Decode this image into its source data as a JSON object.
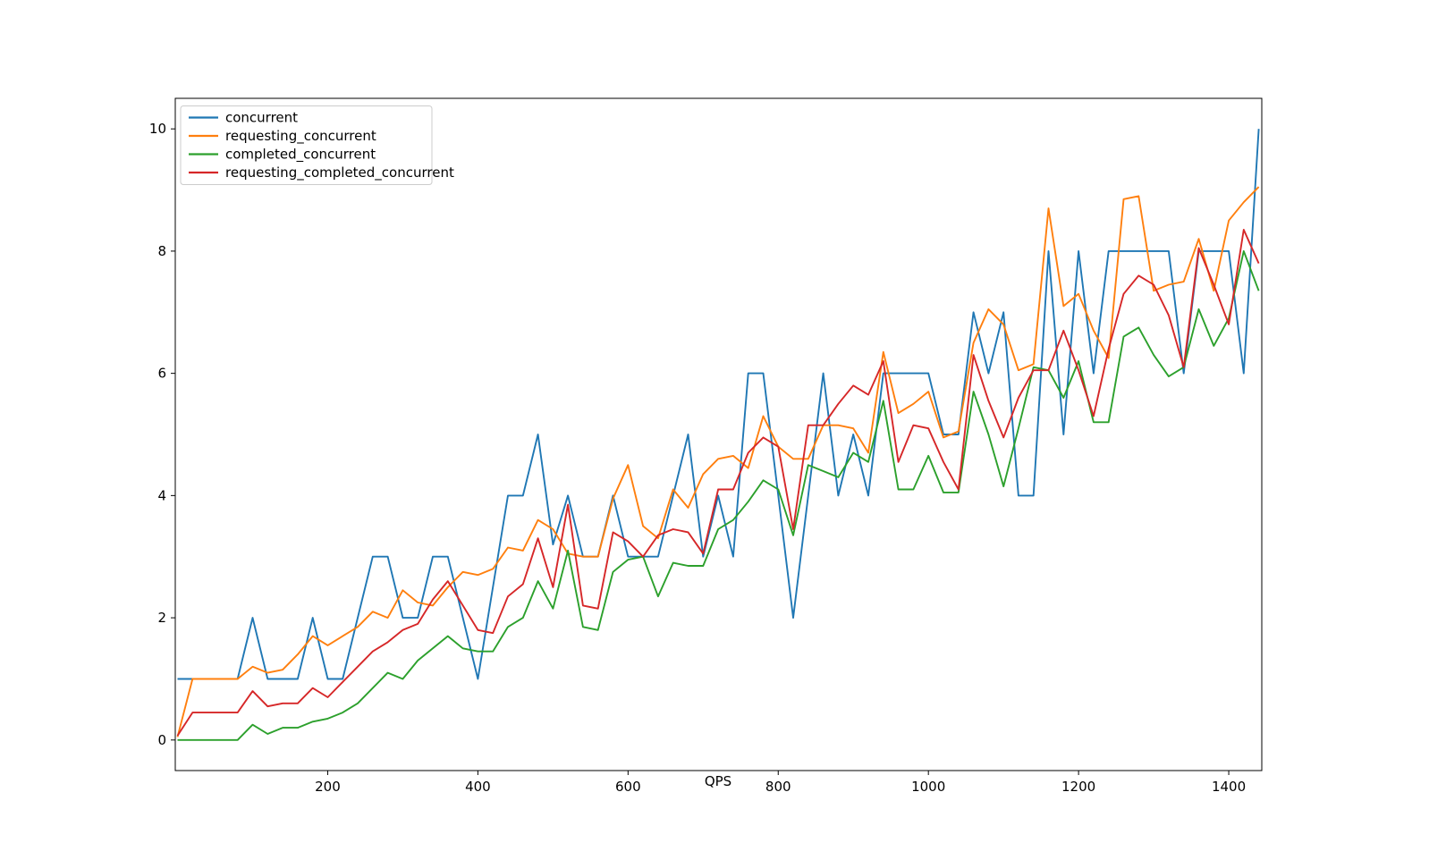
{
  "figure": {
    "background": "#ffffff",
    "axes_edge_color": "#000000",
    "legend_border_color": "#cccccc"
  },
  "chart_data": {
    "type": "line",
    "title": "",
    "xlabel": "QPS",
    "ylabel": "",
    "grid": false,
    "legend_position": "upper left",
    "xlim": [
      -3,
      1444
    ],
    "ylim": [
      -0.5,
      10.5
    ],
    "x_ticks": [
      200,
      400,
      600,
      800,
      1000,
      1200,
      1400
    ],
    "y_ticks": [
      0,
      2,
      4,
      6,
      8,
      10
    ],
    "x": [
      0,
      20,
      40,
      60,
      80,
      100,
      120,
      140,
      160,
      180,
      200,
      220,
      240,
      260,
      280,
      300,
      320,
      340,
      360,
      380,
      400,
      420,
      440,
      460,
      480,
      500,
      520,
      540,
      560,
      580,
      600,
      620,
      640,
      660,
      680,
      700,
      720,
      740,
      760,
      780,
      800,
      820,
      840,
      860,
      880,
      900,
      920,
      940,
      960,
      980,
      1000,
      1020,
      1040,
      1060,
      1080,
      1100,
      1120,
      1140,
      1160,
      1180,
      1200,
      1220,
      1240,
      1260,
      1280,
      1300,
      1320,
      1340,
      1360,
      1380,
      1400,
      1420,
      1440
    ],
    "series": [
      {
        "name": "concurrent",
        "color": "#1f77b4",
        "values": [
          1,
          1,
          1,
          1,
          1,
          2,
          1,
          1,
          1,
          2,
          1,
          1,
          2,
          3,
          3,
          2,
          2,
          3,
          3,
          2,
          1,
          2.5,
          4,
          4,
          5,
          3.2,
          4,
          3,
          3,
          4,
          3,
          3,
          3,
          4,
          5,
          3,
          4,
          3,
          6,
          6,
          4,
          2,
          4,
          6,
          4,
          5,
          4,
          6,
          6,
          6,
          6,
          5,
          5,
          7,
          6,
          7,
          4,
          4,
          8,
          5,
          8,
          6,
          8,
          8,
          8,
          8,
          8,
          6,
          8,
          8,
          8,
          6,
          10
        ]
      },
      {
        "name": "requesting_concurrent",
        "color": "#ff7f0e",
        "values": [
          0.05,
          1,
          1,
          1,
          1,
          1.2,
          1.1,
          1.15,
          1.4,
          1.7,
          1.55,
          1.7,
          1.85,
          2.1,
          2.0,
          2.45,
          2.25,
          2.2,
          2.5,
          2.75,
          2.7,
          2.8,
          3.15,
          3.1,
          3.6,
          3.45,
          3.05,
          3.0,
          3.0,
          3.95,
          4.5,
          3.5,
          3.3,
          4.1,
          3.8,
          4.35,
          4.6,
          4.65,
          4.45,
          5.3,
          4.8,
          4.6,
          4.6,
          5.15,
          5.15,
          5.1,
          4.7,
          6.35,
          5.35,
          5.5,
          5.7,
          4.95,
          5.05,
          6.5,
          7.05,
          6.8,
          6.05,
          6.15,
          8.7,
          7.1,
          7.3,
          6.7,
          6.25,
          8.85,
          8.9,
          7.35,
          7.45,
          7.5,
          8.2,
          7.35,
          8.5,
          8.8,
          9.05
        ]
      },
      {
        "name": "completed_concurrent",
        "color": "#2ca02c",
        "values": [
          0,
          0,
          0,
          0,
          0,
          0.25,
          0.1,
          0.2,
          0.2,
          0.3,
          0.35,
          0.45,
          0.6,
          0.85,
          1.1,
          1.0,
          1.3,
          1.5,
          1.7,
          1.5,
          1.45,
          1.45,
          1.85,
          2.0,
          2.6,
          2.15,
          3.1,
          1.85,
          1.8,
          2.75,
          2.95,
          3.0,
          2.35,
          2.9,
          2.85,
          2.85,
          3.45,
          3.6,
          3.9,
          4.25,
          4.1,
          3.35,
          4.5,
          4.4,
          4.3,
          4.7,
          4.55,
          5.55,
          4.1,
          4.1,
          4.65,
          4.05,
          4.05,
          5.7,
          5.0,
          4.15,
          5.1,
          6.1,
          6.05,
          5.6,
          6.2,
          5.2,
          5.2,
          6.6,
          6.75,
          6.3,
          5.95,
          6.1,
          7.05,
          6.45,
          6.9,
          8.0,
          7.35
        ]
      },
      {
        "name": "requesting_completed_concurrent",
        "color": "#d62728",
        "values": [
          0.07,
          0.45,
          0.45,
          0.45,
          0.45,
          0.8,
          0.55,
          0.6,
          0.6,
          0.85,
          0.7,
          0.95,
          1.2,
          1.45,
          1.6,
          1.8,
          1.9,
          2.3,
          2.6,
          2.2,
          1.8,
          1.75,
          2.35,
          2.55,
          3.3,
          2.5,
          3.85,
          2.2,
          2.15,
          3.4,
          3.25,
          3.0,
          3.35,
          3.45,
          3.4,
          3.05,
          4.1,
          4.1,
          4.7,
          4.95,
          4.8,
          3.45,
          5.15,
          5.15,
          5.5,
          5.8,
          5.65,
          6.2,
          4.55,
          5.15,
          5.1,
          4.55,
          4.1,
          6.3,
          5.55,
          4.95,
          5.6,
          6.05,
          6.05,
          6.7,
          6.05,
          5.3,
          6.4,
          7.3,
          7.6,
          7.45,
          6.95,
          6.1,
          8.05,
          7.45,
          6.8,
          8.35,
          7.8
        ]
      }
    ]
  }
}
